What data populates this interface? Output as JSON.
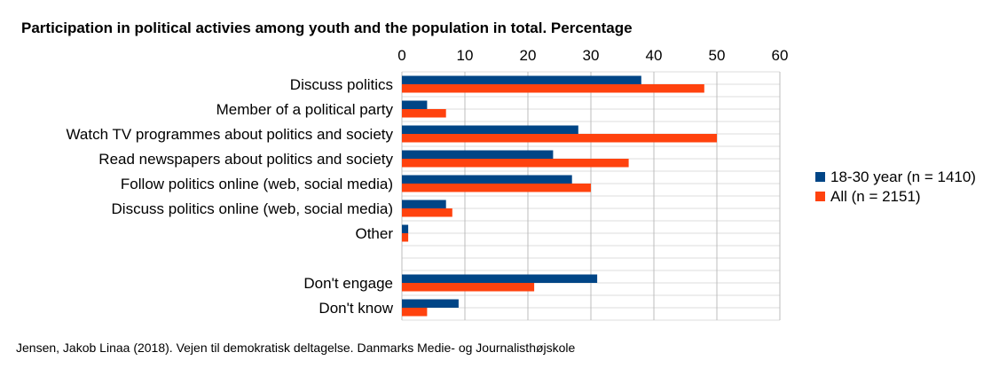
{
  "chart_data": {
    "type": "bar",
    "orientation": "horizontal",
    "title": "Participation in political activies among youth and the population in total. Percentage",
    "xlim": [
      0,
      60
    ],
    "xticks": [
      0,
      10,
      20,
      30,
      40,
      50,
      60
    ],
    "xaxis_position": "top",
    "grid": true,
    "legend_position": "right",
    "categories": [
      "Discuss politics",
      "Member of a political party",
      "Watch TV programmes about politics and society",
      "Read newspapers about politics and society",
      "Follow politics online (web, social media)",
      "Discuss politics online (web, social media)",
      "Other",
      "",
      "Don't engage",
      "Don't know"
    ],
    "series": [
      {
        "name": "18-30 year (n = 1410)",
        "color": "#004586",
        "values": [
          38,
          4,
          28,
          24,
          27,
          7,
          1,
          null,
          31,
          9
        ]
      },
      {
        "name": "All (n = 2151)",
        "color": "#ff420e",
        "values": [
          48,
          7,
          50,
          36,
          30,
          8,
          1,
          null,
          21,
          4
        ]
      }
    ],
    "source": "Jensen, Jakob Linaa (2018). Vejen til demokratisk deltagelse. Danmarks Medie- og Journalisthøjskole"
  }
}
